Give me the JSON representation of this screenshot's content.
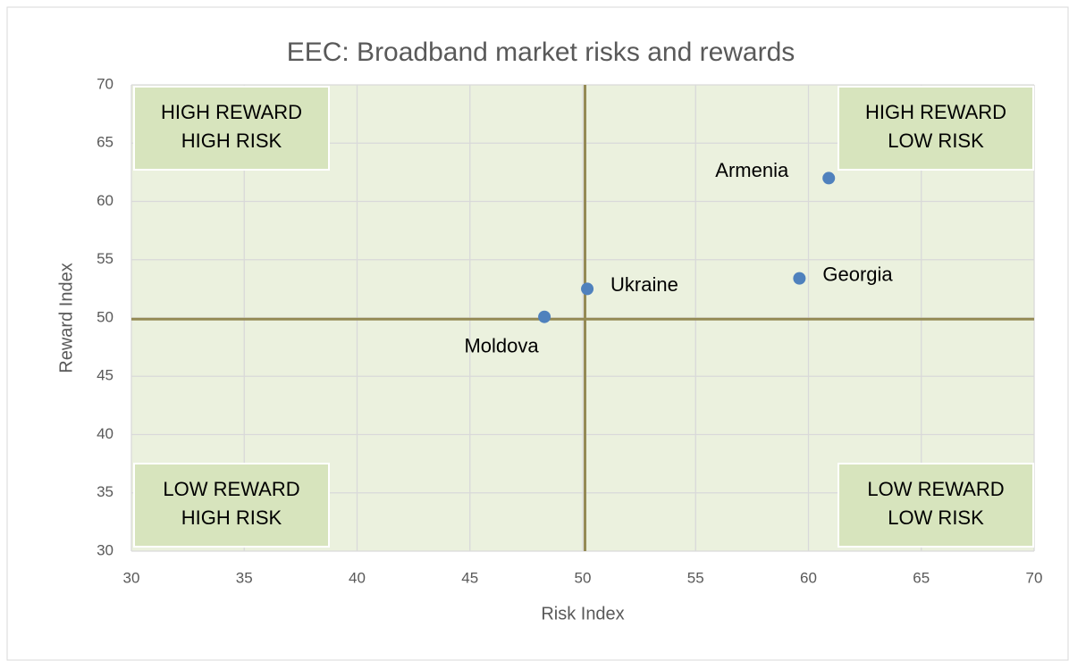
{
  "chart_data": {
    "type": "scatter",
    "title": "EEC: Broadband market risks and rewards",
    "x_label": "Risk Index",
    "y_label": "Reward Index",
    "series": [
      {
        "color": "#4f81bd",
        "x": [
          60.9,
          59.6,
          50.2,
          48.3
        ],
        "values": [
          62,
          53.4,
          52.5,
          50.1
        ],
        "labels": [
          "Armenia",
          "Georgia",
          "Ukraine",
          "Moldova"
        ],
        "label_positions": [
          "left",
          "right",
          "right",
          "below-left"
        ]
      }
    ],
    "xlim": [
      30,
      70
    ],
    "ylim": [
      30,
      70
    ],
    "xticks": [
      30,
      35,
      40,
      45,
      50,
      55,
      60,
      65,
      70
    ],
    "yticks": [
      30,
      35,
      40,
      45,
      50,
      55,
      60,
      65,
      70
    ],
    "grid": true,
    "reference_lines": {
      "x": 50.1,
      "y": 49.9,
      "color": "#948a54"
    },
    "quadrant_labels": [
      {
        "corner": "top-left",
        "lines": [
          "HIGH REWARD",
          "HIGH RISK"
        ]
      },
      {
        "corner": "top-right",
        "lines": [
          "HIGH REWARD",
          "LOW RISK"
        ]
      },
      {
        "corner": "bottom-left",
        "lines": [
          "LOW REWARD",
          "HIGH RISK"
        ]
      },
      {
        "corner": "bottom-right",
        "lines": [
          "LOW REWARD",
          "LOW RISK"
        ]
      }
    ]
  }
}
